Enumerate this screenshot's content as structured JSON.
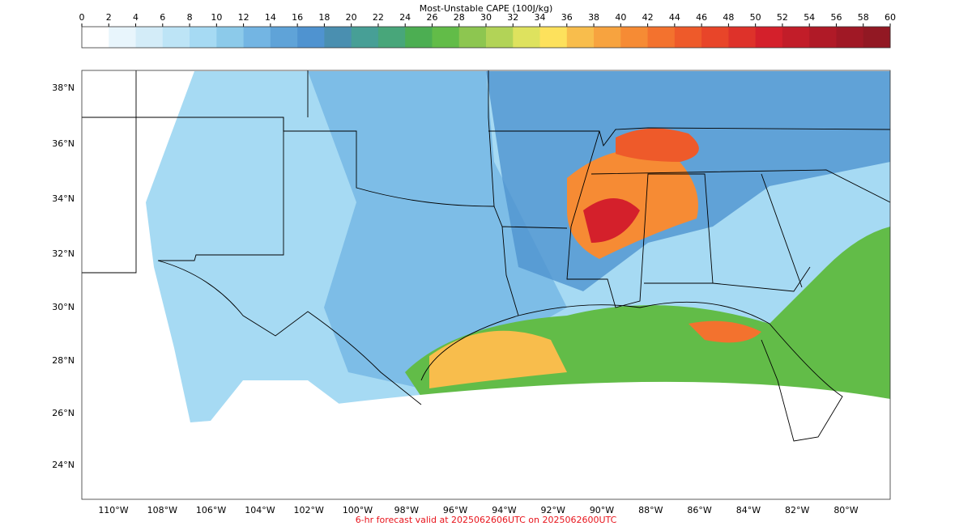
{
  "colorbar": {
    "title": "Most-Unstable CAPE (100J/kg)",
    "ticks": [
      0,
      2,
      4,
      6,
      8,
      10,
      12,
      14,
      16,
      18,
      20,
      22,
      24,
      26,
      28,
      30,
      32,
      34,
      36,
      38,
      40,
      42,
      44,
      46,
      48,
      50,
      52,
      54,
      56,
      58,
      60
    ],
    "colors": [
      "#ffffff",
      "#e8f5fc",
      "#d3ecf8",
      "#bde4f6",
      "#a6daf3",
      "#8ccaea",
      "#73b5e3",
      "#5fa3d8",
      "#4f93d0",
      "#4a8fb0",
      "#479f96",
      "#48a67a",
      "#4cae52",
      "#62bc48",
      "#8dc650",
      "#b2d357",
      "#dee25e",
      "#fde15c",
      "#f8bd4c",
      "#f7a33f",
      "#f68b34",
      "#f3722e",
      "#ee5a2a",
      "#e84529",
      "#de322a",
      "#d4202b",
      "#c21d29",
      "#b01a27",
      "#a01825",
      "#921823"
    ]
  },
  "map": {
    "lat_labels": [
      "38°N",
      "36°N",
      "34°N",
      "32°N",
      "30°N",
      "28°N",
      "26°N",
      "24°N"
    ],
    "lon_labels": [
      "110°W",
      "108°W",
      "106°W",
      "104°W",
      "102°W",
      "100°W",
      "98°W",
      "96°W",
      "94°W",
      "92°W",
      "90°W",
      "88°W",
      "86°W",
      "84°W",
      "82°W",
      "80°W"
    ]
  },
  "footer": "6-hr forecast valid at 2025062606UTC on 2025062600UTC"
}
